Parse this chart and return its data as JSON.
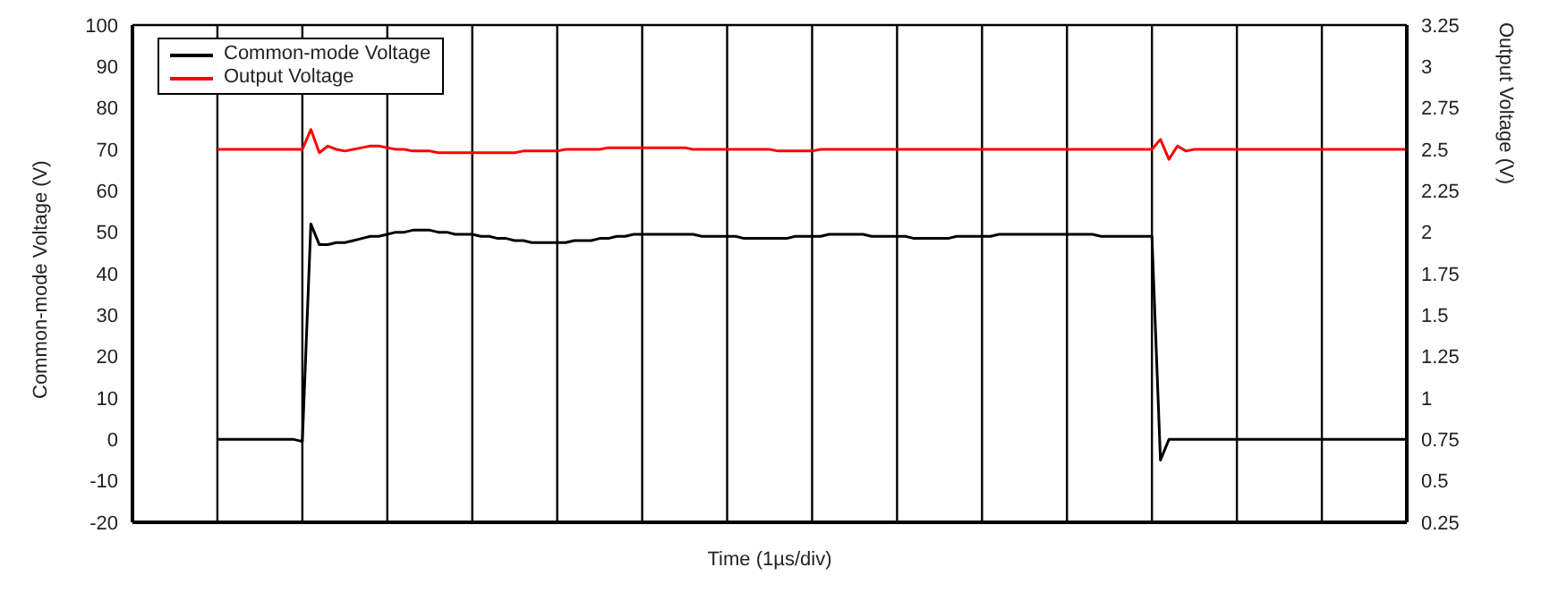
{
  "chart_data": {
    "type": "line",
    "xlabel": "Time (1µs/div)",
    "ylabel": "Common-mode Voltage (V)",
    "y2label": "Output Voltage (V)",
    "categories": [
      null,
      null,
      null,
      null,
      null,
      null,
      null,
      null,
      null,
      null,
      null,
      null,
      null,
      null,
      null,
      null,
      null,
      null,
      null,
      null,
      null,
      null,
      null,
      null,
      null,
      null,
      null,
      null,
      null,
      null,
      null,
      null,
      null,
      null,
      null,
      null,
      null,
      null,
      null,
      null,
      null,
      null,
      null,
      null,
      null,
      null,
      null,
      null,
      null,
      null,
      null,
      null,
      null,
      null,
      null,
      null,
      null,
      null,
      null,
      null,
      null,
      null,
      null,
      null,
      null,
      null,
      null,
      null,
      null,
      null,
      null,
      null,
      null,
      null,
      null,
      null,
      null,
      null,
      null,
      null,
      null,
      null,
      null,
      null,
      null,
      null,
      null,
      null,
      null,
      null,
      null,
      null,
      null,
      null,
      null,
      null,
      null,
      null,
      null,
      null,
      null,
      null,
      null,
      null,
      null,
      null,
      null,
      null,
      null,
      null,
      null,
      null,
      null,
      null,
      null,
      null,
      null,
      null,
      null,
      null,
      null,
      null,
      null,
      null,
      null,
      null,
      null,
      null,
      null,
      null,
      null,
      null,
      null,
      null,
      null,
      null,
      null,
      null,
      null,
      null,
      null,
      null,
      null,
      null,
      null,
      null,
      null,
      null,
      null,
      null,
      null
    ],
    "ylim": [
      -20,
      100
    ],
    "yticks": [
      -20,
      -10,
      0,
      10,
      20,
      30,
      40,
      50,
      60,
      70,
      80,
      90,
      100
    ],
    "y2lim": [
      0.25,
      3.25
    ],
    "y2ticks": [
      0.25,
      0.5,
      0.75,
      1,
      1.25,
      1.5,
      1.75,
      2,
      2.25,
      2.5,
      2.75,
      3,
      3.25
    ],
    "grid": true,
    "legend": "top left",
    "marker": "none",
    "line_style": "solid",
    "series": [
      {
        "name": "Common-mode Voltage",
        "color": "#000000",
        "values": [
          null,
          null,
          null,
          null,
          null,
          null,
          null,
          null,
          null,
          null,
          0,
          0,
          0,
          0,
          0,
          0,
          0,
          0,
          0,
          0,
          -0.5,
          52,
          47,
          47,
          47.5,
          47.5,
          48,
          48.5,
          49,
          49,
          49.5,
          50,
          50,
          50.5,
          50.5,
          50.5,
          50,
          50,
          49.5,
          49.5,
          49.5,
          49,
          49,
          48.5,
          48.5,
          48,
          48,
          47.5,
          47.5,
          47.5,
          47.5,
          47.5,
          48,
          48,
          48,
          48.5,
          48.5,
          49,
          49,
          49.5,
          49.5,
          49.5,
          49.5,
          49.5,
          49.5,
          49.5,
          49.5,
          49,
          49,
          49,
          49,
          49,
          48.5,
          48.5,
          48.5,
          48.5,
          48.5,
          48.5,
          49,
          49,
          49,
          49,
          49.5,
          49.5,
          49.5,
          49.5,
          49.5,
          49,
          49,
          49,
          49,
          49,
          48.5,
          48.5,
          48.5,
          48.5,
          48.5,
          49,
          49,
          49,
          49,
          49,
          49.5,
          49.5,
          49.5,
          49.5,
          49.5,
          49.5,
          49.5,
          49.5,
          49.5,
          49.5,
          49.5,
          49.5,
          49,
          49,
          49,
          49,
          49,
          49,
          49,
          -5,
          0,
          0,
          0,
          0,
          0,
          0,
          0,
          0,
          0,
          0,
          0,
          0,
          0,
          0,
          0,
          0,
          0,
          0,
          0,
          0,
          0,
          0,
          0,
          0,
          0,
          0,
          0,
          0,
          0
        ]
      },
      {
        "name": "Output Voltage",
        "color": "#ff0000",
        "axis": "y2",
        "values": [
          null,
          null,
          null,
          null,
          null,
          null,
          null,
          null,
          null,
          null,
          2.5,
          2.5,
          2.5,
          2.5,
          2.5,
          2.5,
          2.5,
          2.5,
          2.5,
          2.5,
          2.5,
          2.62,
          2.48,
          2.52,
          2.5,
          2.49,
          2.5,
          2.51,
          2.52,
          2.52,
          2.51,
          2.5,
          2.5,
          2.49,
          2.49,
          2.49,
          2.48,
          2.48,
          2.48,
          2.48,
          2.48,
          2.48,
          2.48,
          2.48,
          2.48,
          2.48,
          2.49,
          2.49,
          2.49,
          2.49,
          2.49,
          2.5,
          2.5,
          2.5,
          2.5,
          2.5,
          2.51,
          2.51,
          2.51,
          2.51,
          2.51,
          2.51,
          2.51,
          2.51,
          2.51,
          2.51,
          2.5,
          2.5,
          2.5,
          2.5,
          2.5,
          2.5,
          2.5,
          2.5,
          2.5,
          2.5,
          2.49,
          2.49,
          2.49,
          2.49,
          2.49,
          2.5,
          2.5,
          2.5,
          2.5,
          2.5,
          2.5,
          2.5,
          2.5,
          2.5,
          2.5,
          2.5,
          2.5,
          2.5,
          2.5,
          2.5,
          2.5,
          2.5,
          2.5,
          2.5,
          2.5,
          2.5,
          2.5,
          2.5,
          2.5,
          2.5,
          2.5,
          2.5,
          2.5,
          2.5,
          2.5,
          2.5,
          2.5,
          2.5,
          2.5,
          2.5,
          2.5,
          2.5,
          2.5,
          2.5,
          2.5,
          2.56,
          2.44,
          2.52,
          2.49,
          2.5,
          2.5,
          2.5,
          2.5,
          2.5,
          2.5,
          2.5,
          2.5,
          2.5,
          2.5,
          2.5,
          2.5,
          2.5,
          2.5,
          2.5,
          2.5,
          2.5,
          2.5,
          2.5,
          2.5,
          2.5,
          2.5,
          2.5,
          2.5,
          2.5,
          2.5
        ]
      }
    ]
  }
}
